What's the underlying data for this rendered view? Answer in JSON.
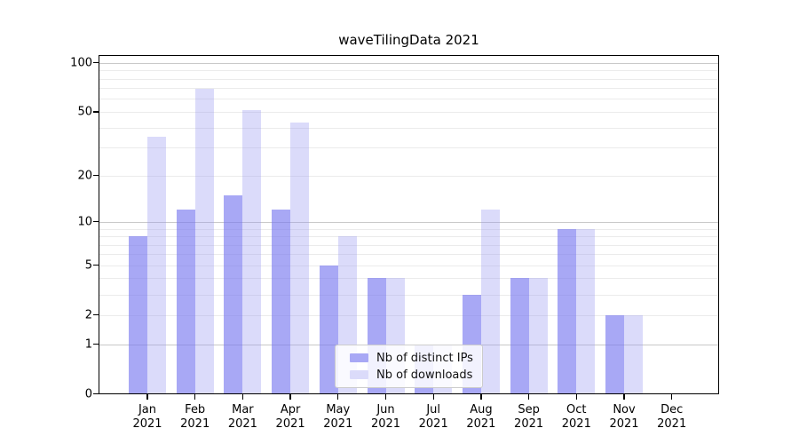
{
  "chart_data": {
    "type": "bar",
    "title": "waveTilingData 2021",
    "categories": [
      "Jan 2021",
      "Feb 2021",
      "Mar 2021",
      "Apr 2021",
      "May 2021",
      "Jun 2021",
      "Jul 2021",
      "Aug 2021",
      "Sep 2021",
      "Oct 2021",
      "Nov 2021",
      "Dec 2021"
    ],
    "x_axis": {
      "months": [
        "Jan",
        "Feb",
        "Mar",
        "Apr",
        "May",
        "Jun",
        "Jul",
        "Aug",
        "Sep",
        "Oct",
        "Nov",
        "Dec"
      ],
      "year": "2021"
    },
    "y_axis": {
      "scale": "log1p",
      "tick_labels": [
        "0",
        "1",
        "2",
        "5",
        "10",
        "20",
        "50",
        "100"
      ],
      "tick_values": [
        0,
        1,
        2,
        5,
        10,
        20,
        50,
        100
      ],
      "major_gridlines": [
        1,
        10,
        100
      ],
      "minor_gridlines": [
        2,
        3,
        4,
        5,
        6,
        7,
        8,
        9,
        20,
        30,
        40,
        50,
        60,
        70,
        80,
        90
      ],
      "range": [
        0,
        110
      ],
      "grid": true
    },
    "series": [
      {
        "name": "Nb of distinct IPs",
        "color": "rgba(121,121,240,0.65)",
        "solid_color": "#a8a8f5",
        "values": [
          8,
          12,
          15,
          12,
          5,
          4,
          1,
          3,
          4,
          9,
          2,
          0
        ]
      },
      {
        "name": "Nb of downloads",
        "color": "rgba(152,152,241,0.35)",
        "solid_color": "#dbdbfa",
        "values": [
          35,
          69,
          51,
          43,
          8,
          4,
          1,
          12,
          4,
          9,
          2,
          0
        ]
      }
    ],
    "legend": {
      "position": "lower center",
      "entries": [
        "Nb of distinct IPs",
        "Nb of downloads"
      ]
    }
  }
}
